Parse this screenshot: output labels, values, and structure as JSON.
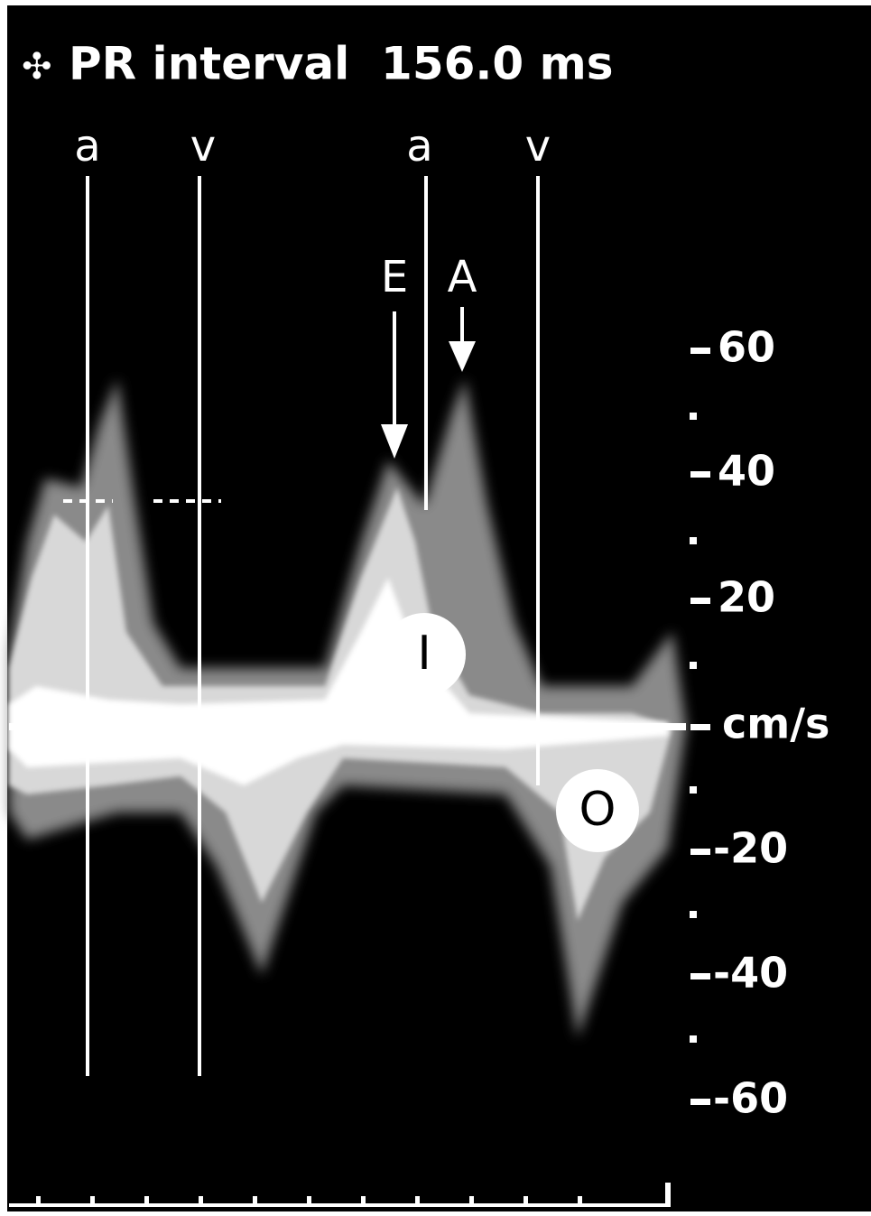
{
  "header": {
    "title": "PR interval  156.0 ms"
  },
  "markers": [
    {
      "label": "a"
    },
    {
      "label": "v"
    },
    {
      "label": "a"
    },
    {
      "label": "v"
    }
  ],
  "arrows": [
    {
      "label": "E"
    },
    {
      "label": "A"
    }
  ],
  "circles": [
    {
      "label": "I"
    },
    {
      "label": "O"
    }
  ],
  "scale": {
    "labels": [
      "60",
      "40",
      "20",
      "cm/s",
      "-20",
      "-40",
      "-60"
    ]
  }
}
